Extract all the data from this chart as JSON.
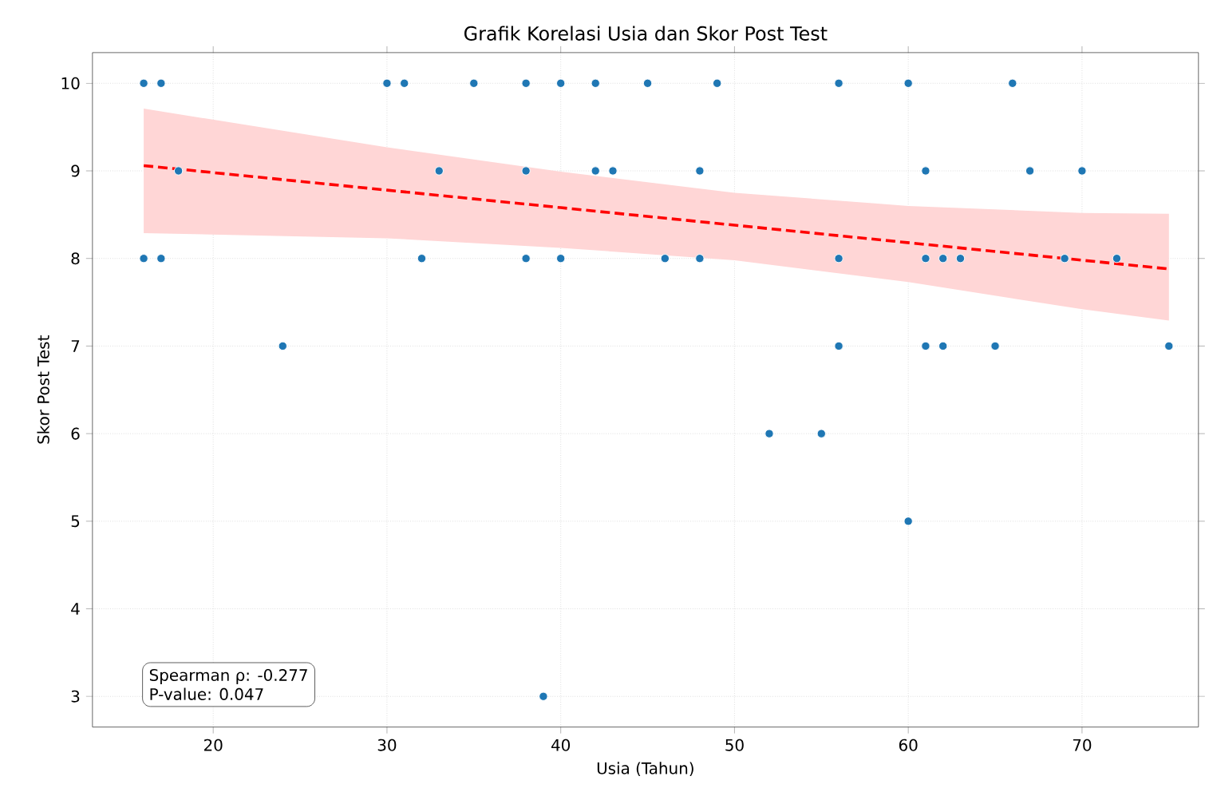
{
  "chart_data": {
    "type": "scatter",
    "title": "Grafik Korelasi Usia dan Skor Post Test",
    "xlabel": "Usia (Tahun)",
    "ylabel": "Skor Post Test",
    "xlim": [
      13.05,
      76.7
    ],
    "ylim": [
      2.65,
      10.35
    ],
    "xticks": [
      20,
      30,
      40,
      50,
      60,
      70
    ],
    "yticks": [
      3,
      4,
      5,
      6,
      7,
      8,
      9,
      10
    ],
    "grid": true,
    "annotations": [
      "Spearman ρ: -0.277",
      "P-value: 0.047"
    ],
    "series": [
      {
        "marker": "circle",
        "color": "#1f77b4",
        "x": [
          16,
          17,
          16,
          17,
          18,
          24,
          30,
          31,
          32,
          33,
          35,
          38,
          38,
          38,
          39,
          40,
          40,
          42,
          42,
          43,
          45,
          46,
          48,
          48,
          49,
          52,
          55,
          56,
          56,
          56,
          60,
          60,
          61,
          61,
          61,
          62,
          62,
          63,
          65,
          66,
          67,
          69,
          70,
          72,
          75
        ],
        "values": [
          10,
          10,
          8,
          8,
          9,
          7,
          10,
          10,
          8,
          9,
          10,
          10,
          9,
          8,
          3,
          10,
          8,
          10,
          9,
          9,
          10,
          8,
          9,
          8,
          10,
          6,
          6,
          10,
          8,
          7,
          10,
          5,
          9,
          8,
          7,
          8,
          7,
          8,
          7,
          10,
          9,
          8,
          9,
          8,
          7
        ]
      },
      {
        "type": "line",
        "marker": "none",
        "color": "#ff0000",
        "line_style": "dashed",
        "x": [
          16,
          30,
          40,
          50,
          60,
          70,
          75
        ],
        "values": [
          9.06,
          8.78,
          8.58,
          8.38,
          8.18,
          7.98,
          7.88
        ],
        "lower": [
          8.29,
          8.23,
          8.12,
          7.98,
          7.73,
          7.42,
          7.29
        ],
        "upper": [
          9.71,
          9.27,
          8.99,
          8.75,
          8.6,
          8.52,
          8.51
        ]
      }
    ]
  }
}
